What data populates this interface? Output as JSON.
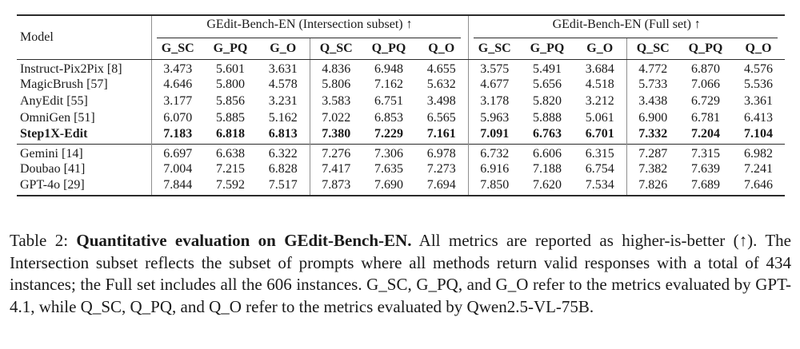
{
  "colors": {
    "text": "#1a1a1a",
    "rule": "#2b2b2b",
    "divider": "#8f8f8f",
    "background": "#ffffff"
  },
  "table": {
    "model_header": "Model",
    "groups": [
      {
        "title": "GEdit-Bench-EN (Intersection subset) ↑"
      },
      {
        "title": "GEdit-Bench-EN (Full set) ↑"
      }
    ],
    "metric_headers": [
      "G_SC",
      "G_PQ",
      "G_O",
      "Q_SC",
      "Q_PQ",
      "Q_O",
      "G_SC",
      "G_PQ",
      "G_O",
      "Q_SC",
      "Q_PQ",
      "Q_O"
    ],
    "sections": [
      {
        "rows": [
          {
            "model": "Instruct-Pix2Pix [8]",
            "bold": false,
            "values": [
              "3.473",
              "5.601",
              "3.631",
              "4.836",
              "6.948",
              "4.655",
              "3.575",
              "5.491",
              "3.684",
              "4.772",
              "6.870",
              "4.576"
            ]
          },
          {
            "model": "MagicBrush [57]",
            "bold": false,
            "values": [
              "4.646",
              "5.800",
              "4.578",
              "5.806",
              "7.162",
              "5.632",
              "4.677",
              "5.656",
              "4.518",
              "5.733",
              "7.066",
              "5.536"
            ]
          },
          {
            "model": "AnyEdit [55]",
            "bold": false,
            "values": [
              "3.177",
              "5.856",
              "3.231",
              "3.583",
              "6.751",
              "3.498",
              "3.178",
              "5.820",
              "3.212",
              "3.438",
              "6.729",
              "3.361"
            ]
          },
          {
            "model": "OmniGen [51]",
            "bold": false,
            "values": [
              "6.070",
              "5.885",
              "5.162",
              "7.022",
              "6.853",
              "6.565",
              "5.963",
              "5.888",
              "5.061",
              "6.900",
              "6.781",
              "6.413"
            ]
          },
          {
            "model": "Step1X-Edit",
            "bold": true,
            "values": [
              "7.183",
              "6.818",
              "6.813",
              "7.380",
              "7.229",
              "7.161",
              "7.091",
              "6.763",
              "6.701",
              "7.332",
              "7.204",
              "7.104"
            ]
          }
        ]
      },
      {
        "rows": [
          {
            "model": "Gemini [14]",
            "bold": false,
            "values": [
              "6.697",
              "6.638",
              "6.322",
              "7.276",
              "7.306",
              "6.978",
              "6.732",
              "6.606",
              "6.315",
              "7.287",
              "7.315",
              "6.982"
            ]
          },
          {
            "model": "Doubao [41]",
            "bold": false,
            "values": [
              "7.004",
              "7.215",
              "6.828",
              "7.417",
              "7.635",
              "7.273",
              "6.916",
              "7.188",
              "6.754",
              "7.382",
              "7.639",
              "7.241"
            ]
          },
          {
            "model": "GPT-4o [29]",
            "bold": false,
            "values": [
              "7.844",
              "7.592",
              "7.517",
              "7.873",
              "7.690",
              "7.694",
              "7.850",
              "7.620",
              "7.534",
              "7.826",
              "7.689",
              "7.646"
            ]
          }
        ]
      }
    ]
  },
  "caption": {
    "prefix": "Table 2: ",
    "bold_title": "Quantitative evaluation on GEdit-Bench-EN.",
    "body": " All metrics are reported as higher-is-better (↑). The Intersection subset reflects the subset of prompts where all methods return valid responses with a total of 434 instances; the Full set includes all the 606 instances. G_SC, G_PQ, and G_O refer to the metrics evaluated by GPT-4.1, while Q_SC, Q_PQ, and Q_O refer to the metrics evaluated by Qwen2.5-VL-75B."
  }
}
